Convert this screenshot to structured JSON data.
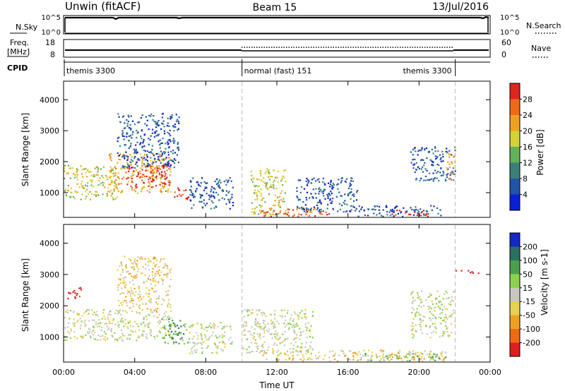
{
  "header": {
    "station": "Unwin (fitACF)",
    "beam": "Beam 15",
    "date": "13/Jul/2016"
  },
  "nsky_panel": {
    "left_label": "N.Sky",
    "left_ticks": [
      "10^5",
      "10^0"
    ],
    "right_ticks": [
      "10^5",
      "10^0"
    ],
    "right_label": "N.Search"
  },
  "freq_panel": {
    "left_label_line1": "Freq.",
    "left_label_line2": "[MHz]",
    "left_ticks": [
      "18",
      "8"
    ],
    "right_ticks": [
      "60",
      "0"
    ],
    "right_label": "Nave"
  },
  "cpid_panel": {
    "label": "CPID",
    "modes": [
      {
        "text": "themis 3300",
        "start_hour": 0,
        "end_hour": 10
      },
      {
        "text": "normal (fast) 151",
        "start_hour": 10,
        "end_hour": 22
      },
      {
        "text": "themis 3300",
        "start_hour": 22,
        "end_hour": 24
      }
    ]
  },
  "chart_data": [
    {
      "type": "heatmap",
      "name": "power",
      "ylabel": "Slant Range [km]",
      "xlim": [
        0,
        24
      ],
      "ylim": [
        200,
        4600
      ],
      "y_ticks": [
        "1000",
        "2000",
        "3000",
        "4000"
      ],
      "colorbar": {
        "label": "Power [dB]",
        "ticks": [
          "4",
          "8",
          "12",
          "16",
          "20",
          "24",
          "28"
        ],
        "colors": [
          "#0a1fd8",
          "#1f55a8",
          "#3a7f7a",
          "#62b25a",
          "#d4d234",
          "#f0a020",
          "#ee6a1a",
          "#e0241e"
        ]
      },
      "regions": [
        {
          "x0": 0.0,
          "x1": 3.0,
          "y0": 800,
          "y1": 1900,
          "level": 4
        },
        {
          "x0": 2.5,
          "x1": 6.0,
          "y0": 1000,
          "y1": 2300,
          "level": 5
        },
        {
          "x0": 3.5,
          "x1": 6.0,
          "y0": 1200,
          "y1": 1900,
          "level": 7
        },
        {
          "x0": 6.2,
          "x1": 7.0,
          "y0": 800,
          "y1": 1200,
          "level": 7
        },
        {
          "x0": 3.0,
          "x1": 6.5,
          "y0": 1800,
          "y1": 3600,
          "level": 1
        },
        {
          "x0": 7.0,
          "x1": 9.5,
          "y0": 500,
          "y1": 1500,
          "level": 1
        },
        {
          "x0": 10.5,
          "x1": 12.5,
          "y0": 300,
          "y1": 1800,
          "level": 4
        },
        {
          "x0": 11.0,
          "x1": 15.0,
          "y0": 250,
          "y1": 550,
          "level": 6
        },
        {
          "x0": 13.0,
          "x1": 16.5,
          "y0": 400,
          "y1": 1500,
          "level": 1
        },
        {
          "x0": 16.5,
          "x1": 21.5,
          "y0": 250,
          "y1": 600,
          "level": 1
        },
        {
          "x0": 18.5,
          "x1": 20.5,
          "y0": 250,
          "y1": 450,
          "level": 7
        },
        {
          "x0": 19.5,
          "x1": 22.0,
          "y0": 1400,
          "y1": 2500,
          "level": 1
        },
        {
          "x0": 21.5,
          "x1": 22.0,
          "y0": 1400,
          "y1": 2400,
          "level": 5
        }
      ]
    },
    {
      "type": "heatmap",
      "name": "velocity",
      "ylabel": "Slant Range [km]",
      "xlabel": "Time UT",
      "xlim": [
        0,
        24
      ],
      "ylim": [
        200,
        4600
      ],
      "x_ticks": [
        "00:00",
        "04:00",
        "08:00",
        "12:00",
        "16:00",
        "20:00",
        "00:00"
      ],
      "y_ticks": [
        "1000",
        "2000",
        "3000",
        "4000"
      ],
      "colorbar": {
        "label": "Velocity [m s-1]",
        "ticks": [
          "200",
          "100",
          "50",
          "15",
          "-15",
          "-50",
          "-100",
          "-200"
        ],
        "colors": [
          "#1428c8",
          "#2a6e64",
          "#4aa04a",
          "#8ad24a",
          "#c8c8c0",
          "#e8d050",
          "#f0a020",
          "#f06a14",
          "#e01e1e"
        ]
      },
      "regions": [
        {
          "x0": 0.0,
          "x1": 6.0,
          "y0": 900,
          "y1": 1900,
          "level": 4
        },
        {
          "x0": 0.2,
          "x1": 1.0,
          "y0": 2200,
          "y1": 2600,
          "level": 8
        },
        {
          "x0": 3.0,
          "x1": 6.0,
          "y0": 1800,
          "y1": 3600,
          "level": 5
        },
        {
          "x0": 5.5,
          "x1": 7.0,
          "y0": 800,
          "y1": 1600,
          "level": 2
        },
        {
          "x0": 7.0,
          "x1": 9.5,
          "y0": 500,
          "y1": 1500,
          "level": 4
        },
        {
          "x0": 10.0,
          "x1": 14.0,
          "y0": 500,
          "y1": 1900,
          "level": 4
        },
        {
          "x0": 11.0,
          "x1": 21.5,
          "y0": 250,
          "y1": 600,
          "level": 5
        },
        {
          "x0": 16.5,
          "x1": 21.5,
          "y0": 250,
          "y1": 500,
          "level": 3
        },
        {
          "x0": 19.5,
          "x1": 22.0,
          "y0": 1000,
          "y1": 2500,
          "level": 4
        },
        {
          "x0": 22.0,
          "x1": 23.5,
          "y0": 3050,
          "y1": 3150,
          "level": 8
        }
      ]
    }
  ]
}
